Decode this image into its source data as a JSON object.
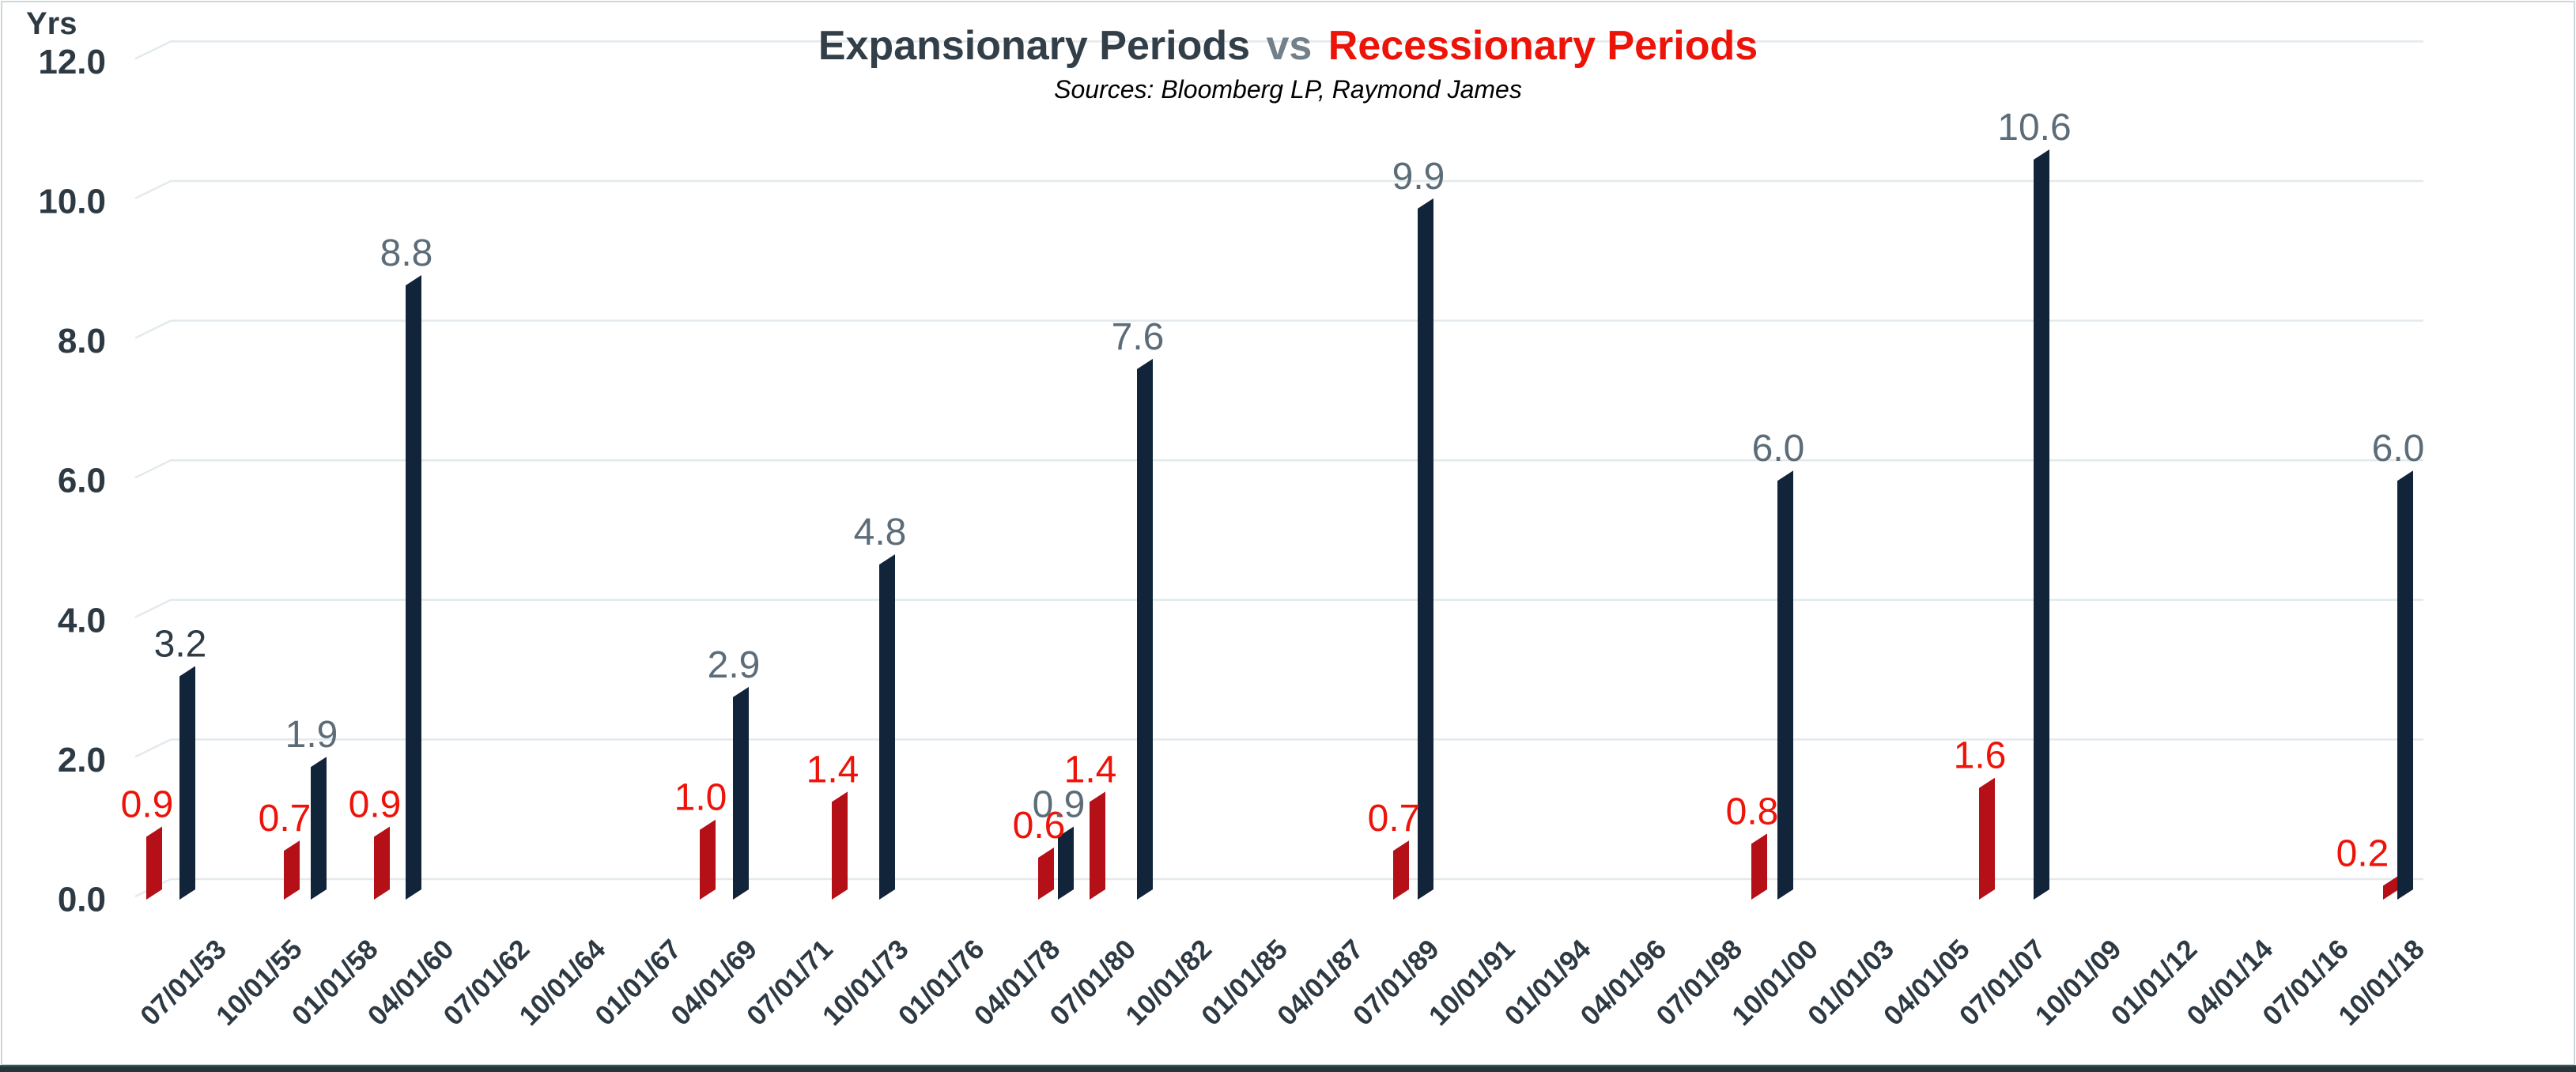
{
  "header": {
    "title_part1": "Expansionary Periods",
    "title_vs": "vs",
    "title_part2": "Recessionary Periods",
    "subtitle": "Sources: Bloomberg LP, Raymond James"
  },
  "colors": {
    "expansion_bar": "#12243a",
    "recession_bar": "#b50f17",
    "expansion_label": "#5c6c78",
    "expansion_label_dark": "#2f3c46",
    "recession_label": "#ee1309",
    "axis_text": "#2e3a43",
    "gridline": "#e3eaed",
    "title_dark": "#333f48",
    "title_vs": "#71808a",
    "title_red": "#ec1408",
    "footer_strip": "#26343b",
    "footer_strip_edge": "#3d5a51",
    "border": "#ccd8dc"
  },
  "chart_data": {
    "type": "bar",
    "title": "Expansionary Periods vs Recessionary Periods",
    "subtitle": "Sources: Bloomberg LP, Raymond James",
    "ylabel": "Yrs",
    "xlabel": "",
    "ylim": [
      0,
      12
    ],
    "grid": true,
    "legend_position": "none",
    "style_3d_skew": true,
    "y_ticks": [
      {
        "v": 0,
        "label": "0.0"
      },
      {
        "v": 2,
        "label": "2.0"
      },
      {
        "v": 4,
        "label": "4.0"
      },
      {
        "v": 6,
        "label": "6.0"
      },
      {
        "v": 8,
        "label": "8.0"
      },
      {
        "v": 10,
        "label": "10.0"
      },
      {
        "v": 12,
        "label": "12.0"
      }
    ],
    "x_tick_labels": [
      "07/01/53",
      "10/01/55",
      "01/01/58",
      "04/01/60",
      "07/01/62",
      "10/01/64",
      "01/01/67",
      "04/01/69",
      "07/01/71",
      "10/01/73",
      "01/01/76",
      "04/01/78",
      "07/01/80",
      "10/01/82",
      "01/01/85",
      "04/01/87",
      "07/01/89",
      "10/01/91",
      "01/01/94",
      "04/01/96",
      "07/01/98",
      "10/01/00",
      "01/01/03",
      "04/01/05",
      "07/01/07",
      "10/01/09",
      "01/01/12",
      "04/01/14",
      "07/01/16",
      "10/01/18"
    ],
    "series": [
      {
        "name": "Recessionary Periods",
        "color": "#b50f17",
        "label_color": "#ee1309",
        "values": [
          0.9,
          0.7,
          0.9,
          1.0,
          1.4,
          0.6,
          1.4,
          0.7,
          0.8,
          1.6,
          0.2
        ],
        "bars": [
          {
            "x": 185,
            "value": 0.9
          },
          {
            "x": 359,
            "value": 0.7
          },
          {
            "x": 473,
            "value": 0.9
          },
          {
            "x": 885,
            "value": 1.0
          },
          {
            "x": 1052,
            "value": 1.4
          },
          {
            "x": 1313,
            "value": 0.6
          },
          {
            "x": 1378,
            "value": 1.4
          },
          {
            "x": 1762,
            "value": 0.7
          },
          {
            "x": 2215,
            "value": 0.8
          },
          {
            "x": 2503,
            "value": 1.6
          },
          {
            "x": 3014,
            "value": 0.2,
            "label_dx": -27
          }
        ]
      },
      {
        "name": "Expansionary Periods",
        "color": "#12243a",
        "label_color": "#5c6c78",
        "values": [
          3.2,
          1.9,
          8.8,
          2.9,
          4.8,
          0.9,
          7.6,
          9.9,
          6.0,
          10.6,
          6.0
        ],
        "bars": [
          {
            "x": 227,
            "value": 3.2,
            "label_color": "#2f3c46"
          },
          {
            "x": 393,
            "value": 1.9
          },
          {
            "x": 513,
            "value": 8.8
          },
          {
            "x": 927,
            "value": 2.9
          },
          {
            "x": 1112,
            "value": 4.8
          },
          {
            "x": 1338,
            "value": 0.9
          },
          {
            "x": 1438,
            "value": 7.6
          },
          {
            "x": 1793,
            "value": 9.9
          },
          {
            "x": 2248,
            "value": 6.0
          },
          {
            "x": 2572,
            "value": 10.6
          },
          {
            "x": 3032,
            "value": 6.0
          }
        ]
      }
    ]
  }
}
